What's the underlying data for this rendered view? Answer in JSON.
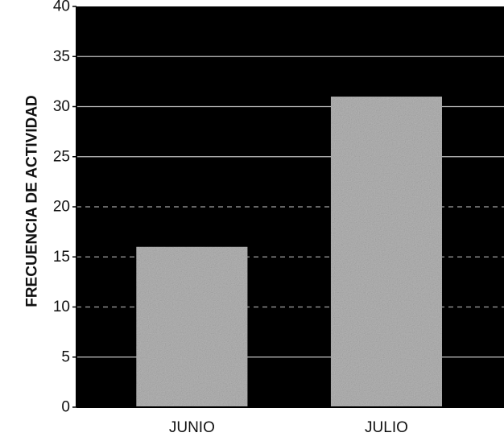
{
  "chart_data": {
    "type": "bar",
    "title": "",
    "xlabel": "",
    "ylabel": "FRECUENCIA DE ACTIVIDAD",
    "categories": [
      "JUNIO",
      "JULIO"
    ],
    "values": [
      16,
      31
    ],
    "ylim": [
      0,
      40
    ],
    "yticks": [
      "0",
      "5",
      "10",
      "15",
      "20",
      "25",
      "30",
      "35",
      "40"
    ],
    "grid": true,
    "colors": {
      "plot_background": "#000000",
      "bar_fill": "#b5b5b5",
      "gridline": "#d8d8d8",
      "text": "#111111"
    }
  }
}
